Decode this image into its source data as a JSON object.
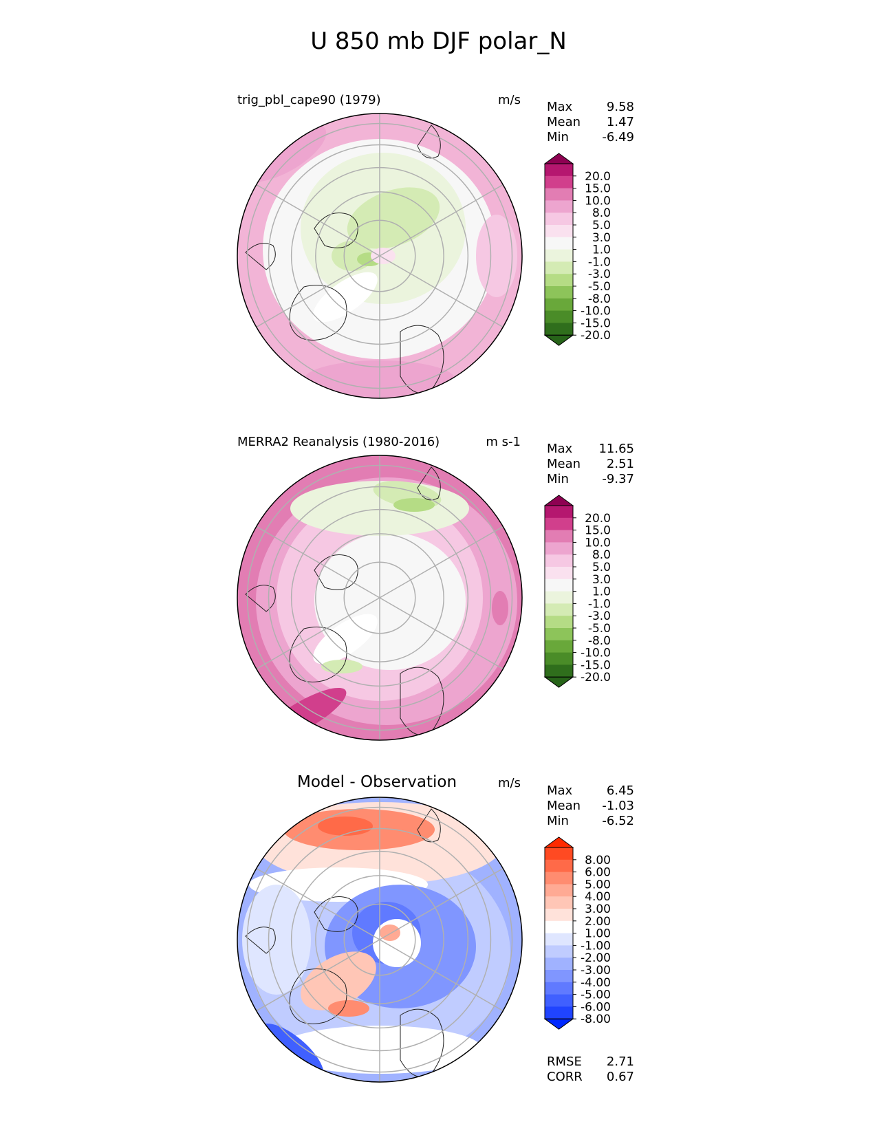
{
  "figure_title": "U 850 mb DJF polar_N",
  "panels": [
    {
      "title": "trig_pbl_cape90 (1979)",
      "units": "m/s",
      "stats": [
        {
          "label": "Max",
          "value": "9.58"
        },
        {
          "label": "Mean",
          "value": "1.47"
        },
        {
          "label": "Min",
          "value": "-6.49"
        }
      ]
    },
    {
      "title": "MERRA2 Reanalysis (1980-2016)",
      "units": "m s-1",
      "stats": [
        {
          "label": "Max",
          "value": "11.65"
        },
        {
          "label": "Mean",
          "value": "2.51"
        },
        {
          "label": "Min",
          "value": "-9.37"
        }
      ]
    },
    {
      "title": "Model - Observation",
      "units": "m/s",
      "stats": [
        {
          "label": "Max",
          "value": "6.45"
        },
        {
          "label": "Mean",
          "value": "-1.03"
        },
        {
          "label": "Min",
          "value": "-6.52"
        }
      ],
      "metrics": [
        {
          "label": "RMSE",
          "value": "2.71"
        },
        {
          "label": "CORR",
          "value": "0.67"
        }
      ]
    }
  ],
  "chart_data": [
    {
      "type": "heatmap",
      "projection": "north polar stereographic",
      "title": "trig_pbl_cape90 (1979)",
      "units": "m/s",
      "max": 9.58,
      "mean": 1.47,
      "min": -6.49,
      "colorbar": {
        "ticks": [
          "20.0",
          "15.0",
          "10.0",
          "8.0",
          "5.0",
          "3.0",
          "1.0",
          "-1.0",
          "-3.0",
          "-5.0",
          "-8.0",
          "-10.0",
          "-15.0",
          "-20.0"
        ],
        "colors": [
          "#8e0152",
          "#b5176f",
          "#d13f8c",
          "#e27db3",
          "#eda5cf",
          "#f6c8e3",
          "#fae1ef",
          "#f7f7f7",
          "#ebf4dd",
          "#d4ebb4",
          "#b5dc85",
          "#8dc45a",
          "#69a83a",
          "#4a8c28",
          "#2f6e1c",
          "#276419"
        ],
        "extend": "both"
      }
    },
    {
      "type": "heatmap",
      "projection": "north polar stereographic",
      "title": "MERRA2 Reanalysis (1980-2016)",
      "units": "m s-1",
      "max": 11.65,
      "mean": 2.51,
      "min": -9.37,
      "colorbar": {
        "ticks": [
          "20.0",
          "15.0",
          "10.0",
          "8.0",
          "5.0",
          "3.0",
          "1.0",
          "-1.0",
          "-3.0",
          "-5.0",
          "-8.0",
          "-10.0",
          "-15.0",
          "-20.0"
        ],
        "colors": [
          "#8e0152",
          "#b5176f",
          "#d13f8c",
          "#e27db3",
          "#eda5cf",
          "#f6c8e3",
          "#fae1ef",
          "#f7f7f7",
          "#ebf4dd",
          "#d4ebb4",
          "#b5dc85",
          "#8dc45a",
          "#69a83a",
          "#4a8c28",
          "#2f6e1c",
          "#276419"
        ],
        "extend": "both"
      }
    },
    {
      "type": "heatmap",
      "projection": "north polar stereographic",
      "title": "Model - Observation",
      "units": "m/s",
      "max": 6.45,
      "mean": -1.03,
      "min": -6.52,
      "rmse": 2.71,
      "corr": 0.67,
      "colorbar": {
        "ticks": [
          "8.00",
          "6.00",
          "5.00",
          "4.00",
          "3.00",
          "2.00",
          "1.00",
          "-1.00",
          "-2.00",
          "-3.00",
          "-4.00",
          "-5.00",
          "-6.00",
          "-8.00"
        ],
        "colors": [
          "#ff2a00",
          "#ff4a22",
          "#ff6a48",
          "#ff8c70",
          "#ffaa94",
          "#ffc6b6",
          "#ffe2da",
          "#ffffff",
          "#dfe6ff",
          "#c0ccff",
          "#a0b2ff",
          "#8096ff",
          "#607aff",
          "#4060ff",
          "#2044ff",
          "#0028ff"
        ],
        "extend": "both"
      }
    }
  ]
}
